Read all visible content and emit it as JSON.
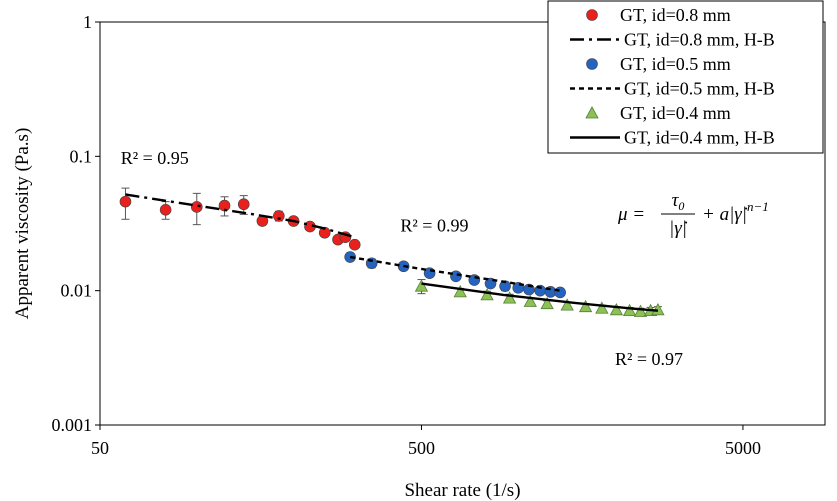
{
  "chart_data": {
    "type": "scatter",
    "xlabel": "Shear rate (1/s)",
    "ylabel": "Apparent viscosity (Pa.s)",
    "xscale": "log",
    "yscale": "log",
    "xlim": [
      50,
      9000
    ],
    "ylim": [
      0.001,
      1
    ],
    "x_ticks": [
      50,
      500,
      5000
    ],
    "y_ticks": [
      0.001,
      0.01,
      0.1,
      1
    ],
    "x_tick_labels": [
      "50",
      "500",
      "5000"
    ],
    "y_tick_labels": [
      "0.001",
      "0.01",
      "0.1",
      "1"
    ],
    "grid": false,
    "legend_position": "top-right",
    "equation": "μ = τ0/|γ̇| + a|γ̇|^(n−1)",
    "annotations": [
      {
        "text": "R² = 0.95",
        "x": 58,
        "y": 0.088
      },
      {
        "text": "R² = 0.99",
        "x": 430,
        "y": 0.0275
      },
      {
        "text": "R² = 0.97",
        "x": 2000,
        "y": 0.0028
      }
    ],
    "series": [
      {
        "name": "GT, id=0.8 mm",
        "kind": "points",
        "marker": "circle",
        "color": "#e8211d",
        "x": [
          60,
          80,
          100,
          122,
          140,
          160,
          180,
          200,
          225,
          250,
          275,
          290,
          310
        ],
        "y": [
          0.046,
          0.04,
          0.042,
          0.043,
          0.044,
          0.033,
          0.036,
          0.033,
          0.03,
          0.027,
          0.024,
          0.025,
          0.022
        ],
        "err": [
          0.012,
          0.006,
          0.011,
          0.007,
          0.007,
          0.002,
          0.003,
          0.002,
          0.001,
          0.001,
          0.001,
          0.001,
          0.001
        ]
      },
      {
        "name": "GT, id=0.8 mm, H-B",
        "kind": "line",
        "dash": "dashdot",
        "color": "#000000",
        "x": [
          60,
          100,
          150,
          200,
          250,
          310
        ],
        "y": [
          0.052,
          0.043,
          0.037,
          0.033,
          0.029,
          0.025
        ]
      },
      {
        "name": "GT, id=0.5 mm",
        "kind": "points",
        "marker": "circle",
        "color": "#2563c0",
        "x": [
          300,
          350,
          440,
          530,
          640,
          730,
          820,
          910,
          1000,
          1080,
          1170,
          1260,
          1350
        ],
        "y": [
          0.0178,
          0.016,
          0.0152,
          0.0135,
          0.0128,
          0.012,
          0.0113,
          0.0108,
          0.0105,
          0.0102,
          0.01,
          0.0098,
          0.0097
        ],
        "err": [
          0.001,
          0.0012,
          0.0005,
          0.0006,
          0.0004,
          0.0005,
          0.0005,
          0.0008,
          0.0007,
          0.0006,
          0.0005,
          0.0005,
          0.0004
        ]
      },
      {
        "name": "GT, id=0.5 mm, H-B",
        "kind": "line",
        "dash": "dashed",
        "color": "#000000",
        "x": [
          300,
          500,
          800,
          1100,
          1350
        ],
        "y": [
          0.0178,
          0.0145,
          0.0122,
          0.0108,
          0.01
        ]
      },
      {
        "name": "GT, id=0.4 mm",
        "kind": "points",
        "marker": "triangle",
        "color": "#8dc155",
        "x": [
          500,
          660,
          800,
          940,
          1090,
          1230,
          1420,
          1620,
          1820,
          2020,
          2220,
          2400,
          2580,
          2720
        ],
        "y": [
          0.0108,
          0.0098,
          0.0093,
          0.0088,
          0.0083,
          0.008,
          0.0078,
          0.0076,
          0.0074,
          0.0072,
          0.0071,
          0.007,
          0.0071,
          0.0072
        ],
        "err": [
          0.0013,
          0.0006,
          0.0006,
          0.0006,
          0.0005,
          0.0004,
          0.0004,
          0.0004,
          0.0004,
          0.0004,
          0.0004,
          0.0004,
          0.0004,
          0.0004
        ]
      },
      {
        "name": "GT, id=0.4 mm, H-B",
        "kind": "line",
        "dash": "solid",
        "color": "#000000",
        "x": [
          500,
          900,
          1500,
          2200,
          2720
        ],
        "y": [
          0.0113,
          0.0093,
          0.0081,
          0.0074,
          0.0071
        ]
      }
    ]
  }
}
